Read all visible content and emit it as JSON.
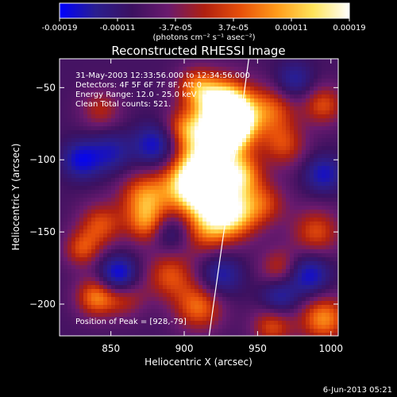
{
  "chart_data": {
    "type": "heatmap",
    "title": "Reconstructed RHESSI Image",
    "xlabel": "Heliocentric X (arcsec)",
    "ylabel": "Heliocentric Y (arcsec)",
    "xlim": [
      815,
      1005
    ],
    "ylim": [
      -222,
      -30
    ],
    "xticks": [
      850,
      900,
      950,
      1000
    ],
    "yticks": [
      -50,
      -100,
      -150,
      -200
    ],
    "colorbar": {
      "ticks": [
        "-0.00019",
        "-0.00011",
        "-3.7e-05",
        "3.7e-05",
        "0.00011",
        "0.00019"
      ],
      "unit": "(photons cm⁻² s⁻¹ asec⁻²)",
      "colormap": [
        "#0000ff",
        "#2a1e8f",
        "#3c1160",
        "#6a1a6e",
        "#b02010",
        "#e8500a",
        "#ff9b1a",
        "#ffe45a",
        "#ffffff"
      ]
    },
    "annotations": {
      "time": "31-May-2003 12:33:56.000 to 12:34:56.000",
      "detectors": "Detectors: 4F 5F 6F 7F 8F, Att 0",
      "energy": "Energy Range: 12.0 - 25.0 keV",
      "clean": "Clean     Total counts: 521.",
      "peak": "Position of Peak = [928,-79]"
    },
    "limb_curve": [
      [
        944,
        -30
      ],
      [
        940,
        -60
      ],
      [
        934,
        -100
      ],
      [
        927,
        -150
      ],
      [
        920,
        -200
      ],
      [
        917,
        -222
      ]
    ],
    "sources": [
      {
        "x": 928,
        "y": -60,
        "v": 1.0,
        "s": 13
      },
      {
        "x": 933,
        "y": -75,
        "v": 0.9,
        "s": 12
      },
      {
        "x": 925,
        "y": -85,
        "v": 0.8,
        "s": 14
      },
      {
        "x": 910,
        "y": -105,
        "v": 0.75,
        "s": 14
      },
      {
        "x": 900,
        "y": -120,
        "v": 0.6,
        "s": 14
      },
      {
        "x": 920,
        "y": -125,
        "v": 0.9,
        "s": 14
      },
      {
        "x": 935,
        "y": -140,
        "v": 0.7,
        "s": 12
      },
      {
        "x": 940,
        "y": -110,
        "v": 0.65,
        "s": 10
      },
      {
        "x": 915,
        "y": -150,
        "v": 0.55,
        "s": 12
      },
      {
        "x": 872,
        "y": -125,
        "v": 0.7,
        "s": 12
      },
      {
        "x": 875,
        "y": -145,
        "v": 0.65,
        "s": 10
      },
      {
        "x": 843,
        "y": -145,
        "v": 0.6,
        "s": 11
      },
      {
        "x": 840,
        "y": -195,
        "v": 0.75,
        "s": 10
      },
      {
        "x": 830,
        "y": -162,
        "v": 0.55,
        "s": 9
      },
      {
        "x": 900,
        "y": -78,
        "v": 0.6,
        "s": 10
      },
      {
        "x": 908,
        "y": -50,
        "v": 0.65,
        "s": 10
      },
      {
        "x": 890,
        "y": -180,
        "v": 0.6,
        "s": 12
      },
      {
        "x": 910,
        "y": -202,
        "v": 0.7,
        "s": 12
      },
      {
        "x": 960,
        "y": -65,
        "v": 0.6,
        "s": 12
      },
      {
        "x": 968,
        "y": -90,
        "v": 0.55,
        "s": 11
      },
      {
        "x": 955,
        "y": -130,
        "v": 0.5,
        "s": 11
      },
      {
        "x": 995,
        "y": -62,
        "v": 0.6,
        "s": 10
      },
      {
        "x": 990,
        "y": -150,
        "v": 0.6,
        "s": 12
      },
      {
        "x": 995,
        "y": -210,
        "v": 0.8,
        "s": 12
      },
      {
        "x": 960,
        "y": -215,
        "v": 0.6,
        "s": 10
      },
      {
        "x": 965,
        "y": -175,
        "v": 0.5,
        "s": 10
      },
      {
        "x": 860,
        "y": -195,
        "v": 0.45,
        "s": 10
      },
      {
        "x": 843,
        "y": -65,
        "v": 0.45,
        "s": 10
      },
      {
        "x": 880,
        "y": -90,
        "v": -0.7,
        "s": 10
      },
      {
        "x": 855,
        "y": -180,
        "v": -0.85,
        "s": 9
      },
      {
        "x": 830,
        "y": -100,
        "v": -0.7,
        "s": 9
      },
      {
        "x": 985,
        "y": -180,
        "v": -0.7,
        "s": 10
      },
      {
        "x": 995,
        "y": -110,
        "v": -0.6,
        "s": 9
      },
      {
        "x": 925,
        "y": -180,
        "v": -0.55,
        "s": 10
      },
      {
        "x": 850,
        "y": -95,
        "v": -0.5,
        "s": 10
      },
      {
        "x": 965,
        "y": -195,
        "v": -0.55,
        "s": 9
      },
      {
        "x": 890,
        "y": -150,
        "v": -0.45,
        "s": 9
      },
      {
        "x": 975,
        "y": -45,
        "v": -0.5,
        "s": 9
      }
    ]
  },
  "footer": {
    "date": "6-Jun-2013 05:21"
  }
}
